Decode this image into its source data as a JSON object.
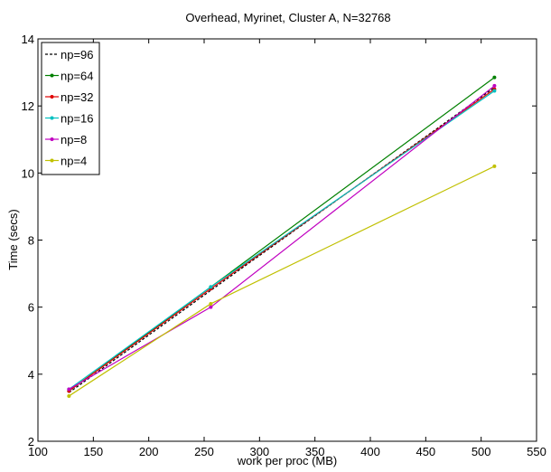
{
  "chart_data": {
    "type": "line",
    "title": "Overhead, Myrinet, Cluster A, N=32768",
    "xlabel": "work per proc (MB)",
    "ylabel": "Time (secs)",
    "xlim": [
      100,
      550
    ],
    "ylim": [
      2,
      14
    ],
    "xticks": [
      "100",
      "150",
      "200",
      "250",
      "300",
      "350",
      "400",
      "450",
      "500",
      "550"
    ],
    "yticks": [
      "2",
      "4",
      "6",
      "8",
      "10",
      "12",
      "14"
    ],
    "grid": false,
    "legend_position": "top-left",
    "x": [
      128,
      256,
      512
    ],
    "series": [
      {
        "name": "np=96",
        "values": [
          3.45,
          6.5,
          12.55
        ],
        "color": "#000000",
        "dash": "dotted"
      },
      {
        "name": "np=64",
        "values": [
          3.5,
          6.6,
          12.85
        ],
        "color": "#008000",
        "dash": "solid"
      },
      {
        "name": "np=32",
        "values": [
          3.5,
          6.55,
          12.5
        ],
        "color": "#e00000",
        "dash": "solid"
      },
      {
        "name": "np=16",
        "values": [
          3.55,
          6.6,
          12.45
        ],
        "color": "#00c0c0",
        "dash": "solid"
      },
      {
        "name": "np=8",
        "values": [
          3.55,
          6.0,
          12.6
        ],
        "color": "#c000c0",
        "dash": "solid"
      },
      {
        "name": "np=4",
        "values": [
          3.35,
          6.1,
          10.2
        ],
        "color": "#c0c000",
        "dash": "solid"
      }
    ]
  }
}
